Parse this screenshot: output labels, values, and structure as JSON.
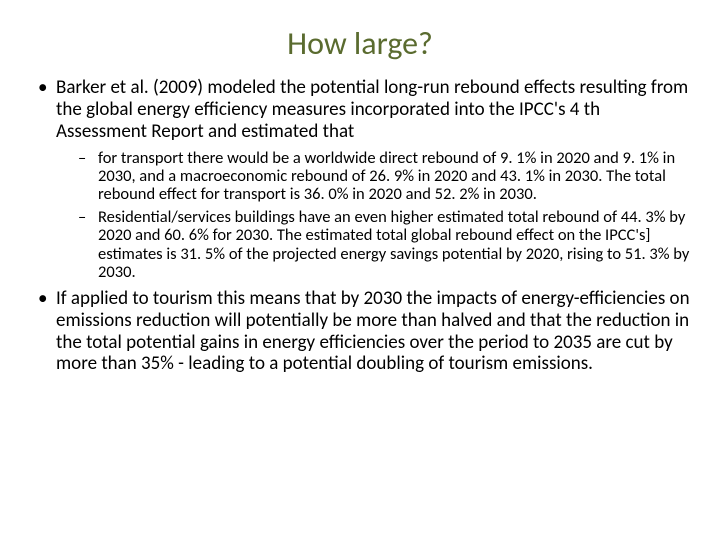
{
  "title": "How large?",
  "title_color": "#5a6b2f",
  "title_fontsize": 32,
  "body_fontsize_l1": 19,
  "body_fontsize_l2": 16.5,
  "background_color": "#ffffff",
  "text_color": "#000000",
  "bullets": {
    "item1": "Barker et al. (2009) modeled the potential long-run rebound effects resulting from the global energy efficiency measures incorporated into the IPCC's 4 th Assessment Report and estimated that",
    "item1_sub1": "for transport there would be a worldwide direct rebound of 9. 1% in 2020 and 9. 1% in 2030, and a macroeconomic rebound of 26. 9% in 2020 and 43. 1% in 2030. The total rebound effect for transport is 36. 0% in 2020 and 52. 2% in 2030.",
    "item1_sub2": "Residential/services buildings have an even higher estimated total rebound of 44. 3% by 2020 and 60. 6% for 2030. The estimated total global rebound effect on the IPCC's] estimates is 31. 5% of the projected energy savings potential by 2020, rising to 51. 3% by 2030.",
    "item2": "If applied to tourism this means that by 2030 the impacts of energy-efficiencies on emissions reduction will potentially be more than halved and that the reduction in the total potential gains in energy efficiencies over the period to 2035 are cut by more than 35% - leading to a potential doubling of tourism emissions."
  }
}
